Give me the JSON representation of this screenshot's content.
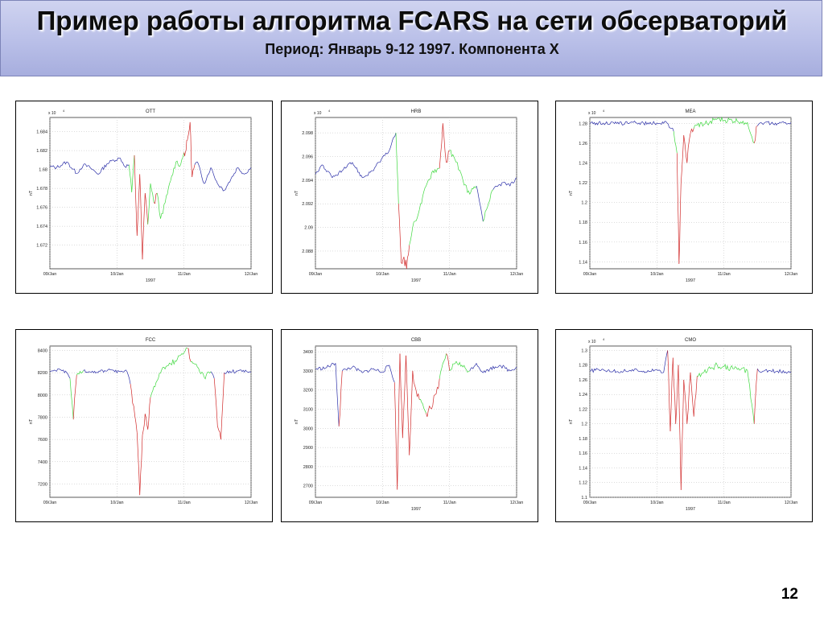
{
  "slide": {
    "title": "Пример работы алгоритма FCARS на сети обсерваторий",
    "subtitle": "Период: Январь 9-12 1997. Компонента X",
    "page_number": "12"
  },
  "colors": {
    "quiet": "#2b2fa8",
    "disturbed": "#d12a2a",
    "recovery": "#3fd93f"
  },
  "chart_data": [
    {
      "type": "line",
      "title": "OTT",
      "ylabel": "nT",
      "xlabel": "1997",
      "exponent_label": "x 10",
      "exponent_power": "4",
      "x_ticks": [
        "09/Jan",
        "10/Jan",
        "11/Jan",
        "12/Jan"
      ],
      "ylim": [
        1.6695,
        1.6855
      ],
      "y_ticks": [
        "1.672",
        "1.674",
        "1.676",
        "1.678",
        "1.68",
        "1.682",
        "1.684"
      ],
      "y_tick_values": [
        1.672,
        1.674,
        1.676,
        1.678,
        1.68,
        1.682,
        1.684
      ],
      "x": [
        0,
        0.1,
        0.25,
        0.4,
        0.5,
        0.6,
        0.72,
        0.85,
        0.95,
        1.05,
        1.12,
        1.18,
        1.22,
        1.26,
        1.3,
        1.34,
        1.38,
        1.42,
        1.46,
        1.5,
        1.55,
        1.6,
        1.65,
        1.72,
        1.8,
        1.88,
        1.95,
        2.0,
        2.03,
        2.06,
        2.09,
        2.12,
        2.16,
        2.2,
        2.3,
        2.4,
        2.5,
        2.6,
        2.7,
        2.8,
        2.9,
        3.0
      ],
      "y": [
        1.6803,
        1.6802,
        1.6808,
        1.6796,
        1.6805,
        1.6802,
        1.6795,
        1.6806,
        1.681,
        1.6812,
        1.6803,
        1.6805,
        1.6776,
        1.6815,
        1.673,
        1.6795,
        1.6705,
        1.6775,
        1.6742,
        1.6785,
        1.6765,
        1.6775,
        1.6748,
        1.6765,
        1.6788,
        1.6808,
        1.6805,
        1.6818,
        1.682,
        1.6835,
        1.685,
        1.6792,
        1.6805,
        1.6808,
        1.6785,
        1.6802,
        1.6785,
        1.6778,
        1.679,
        1.6802,
        1.6795,
        1.6802
      ],
      "phase": [
        "quiet",
        "quiet",
        "quiet",
        "quiet",
        "quiet",
        "quiet",
        "quiet",
        "quiet",
        "quiet",
        "quiet",
        "quiet",
        "recovery",
        "recovery",
        "disturbed",
        "disturbed",
        "disturbed",
        "disturbed",
        "disturbed",
        "recovery",
        "recovery",
        "disturbed",
        "recovery",
        "recovery",
        "recovery",
        "recovery",
        "recovery",
        "recovery",
        "disturbed",
        "disturbed",
        "disturbed",
        "disturbed",
        "disturbed",
        "quiet",
        "quiet",
        "quiet",
        "quiet",
        "quiet",
        "quiet",
        "quiet",
        "quiet",
        "quiet",
        "quiet"
      ]
    },
    {
      "type": "line",
      "title": "HRB",
      "ylabel": "nT",
      "xlabel": "1997",
      "exponent_label": "x 10",
      "exponent_power": "4",
      "x_ticks": [
        "09/Jan",
        "10/Jan",
        "11/Jan",
        "12/Jan"
      ],
      "ylim": [
        2.0865,
        2.0993
      ],
      "y_ticks": [
        "2.088",
        "2.09",
        "2.092",
        "2.094",
        "2.096",
        "2.098"
      ],
      "y_tick_values": [
        2.088,
        2.09,
        2.092,
        2.094,
        2.096,
        2.098
      ],
      "x": [
        0,
        0.1,
        0.25,
        0.4,
        0.55,
        0.7,
        0.85,
        0.95,
        1.1,
        1.2,
        1.24,
        1.28,
        1.32,
        1.36,
        1.4,
        1.45,
        1.55,
        1.65,
        1.75,
        1.85,
        1.9,
        1.95,
        2.0,
        2.1,
        2.2,
        2.3,
        2.4,
        2.5,
        2.55,
        2.65,
        2.8,
        2.9,
        3.0
      ],
      "y": [
        2.0945,
        2.0953,
        2.0942,
        2.0948,
        2.0955,
        2.0942,
        2.0948,
        2.0955,
        2.0965,
        2.098,
        2.092,
        2.087,
        2.0875,
        2.0865,
        2.0885,
        2.09,
        2.0915,
        2.0935,
        2.0948,
        2.095,
        2.0988,
        2.0955,
        2.0965,
        2.0955,
        2.094,
        2.0928,
        2.0935,
        2.0905,
        2.0915,
        2.0932,
        2.0938,
        2.0935,
        2.0942
      ],
      "phase": [
        "quiet",
        "quiet",
        "quiet",
        "quiet",
        "quiet",
        "quiet",
        "quiet",
        "quiet",
        "quiet",
        "recovery",
        "disturbed",
        "disturbed",
        "disturbed",
        "disturbed",
        "recovery",
        "recovery",
        "recovery",
        "recovery",
        "recovery",
        "disturbed",
        "disturbed",
        "disturbed",
        "recovery",
        "recovery",
        "recovery",
        "recovery",
        "quiet",
        "recovery",
        "recovery",
        "quiet",
        "quiet",
        "quiet",
        "quiet"
      ]
    },
    {
      "type": "line",
      "title": "MEA",
      "ylabel": "nT",
      "xlabel": "1997",
      "exponent_label": "x 10",
      "exponent_power": "4",
      "x_ticks": [
        "09/Jan",
        "10/Jan",
        "11/Jan",
        "12/Jan"
      ],
      "ylim": [
        1.133,
        1.286
      ],
      "y_ticks": [
        "1.14",
        "1.16",
        "1.18",
        "1.2",
        "1.22",
        "1.24",
        "1.26",
        "1.28"
      ],
      "y_tick_values": [
        1.14,
        1.16,
        1.18,
        1.2,
        1.22,
        1.24,
        1.26,
        1.28
      ],
      "x": [
        0,
        0.2,
        0.4,
        0.6,
        0.8,
        1.0,
        1.15,
        1.25,
        1.3,
        1.33,
        1.36,
        1.4,
        1.45,
        1.5,
        1.55,
        1.6,
        1.7,
        1.8,
        1.9,
        2.0,
        2.2,
        2.35,
        2.45,
        2.5,
        2.55,
        2.6,
        2.8,
        3.0
      ],
      "y": [
        1.28,
        1.2805,
        1.2798,
        1.2808,
        1.2802,
        1.2805,
        1.2805,
        1.272,
        1.25,
        1.138,
        1.22,
        1.268,
        1.24,
        1.27,
        1.275,
        1.278,
        1.279,
        1.2825,
        1.2845,
        1.283,
        1.2822,
        1.281,
        1.26,
        1.2775,
        1.281,
        1.2805,
        1.28,
        1.2808
      ],
      "phase": [
        "quiet",
        "quiet",
        "quiet",
        "quiet",
        "quiet",
        "quiet",
        "quiet",
        "recovery",
        "disturbed",
        "disturbed",
        "disturbed",
        "disturbed",
        "disturbed",
        "disturbed",
        "recovery",
        "recovery",
        "recovery",
        "recovery",
        "recovery",
        "recovery",
        "recovery",
        "recovery",
        "disturbed",
        "quiet",
        "quiet",
        "quiet",
        "quiet",
        "quiet"
      ]
    },
    {
      "type": "line",
      "title": "FCC",
      "ylabel": "nT",
      "xlabel": "",
      "x_ticks": [
        "09/Jan",
        "10/Jan",
        "11/Jan",
        "12/Jan"
      ],
      "ylim": [
        7080,
        8440
      ],
      "y_ticks": [
        "7200",
        "7400",
        "7600",
        "7800",
        "8000",
        "8200",
        "8400"
      ],
      "y_tick_values": [
        7200,
        7400,
        7600,
        7800,
        8000,
        8200,
        8400
      ],
      "x": [
        0,
        0.2,
        0.3,
        0.35,
        0.4,
        0.5,
        0.7,
        0.9,
        1.05,
        1.15,
        1.2,
        1.25,
        1.3,
        1.34,
        1.38,
        1.42,
        1.46,
        1.5,
        1.6,
        1.7,
        1.8,
        1.9,
        2.0,
        2.05,
        2.1,
        2.2,
        2.3,
        2.4,
        2.45,
        2.5,
        2.55,
        2.6,
        2.8,
        3.0
      ],
      "y": [
        8210,
        8225,
        8150,
        7780,
        8180,
        8220,
        8205,
        8225,
        8210,
        8210,
        8100,
        7900,
        7660,
        7100,
        7640,
        7830,
        7690,
        7980,
        8130,
        8250,
        8280,
        8320,
        8380,
        8420,
        8300,
        8250,
        8160,
        8210,
        8150,
        7720,
        7600,
        8200,
        8215,
        8205
      ],
      "phase": [
        "quiet",
        "quiet",
        "recovery",
        "disturbed",
        "recovery",
        "quiet",
        "quiet",
        "quiet",
        "quiet",
        "quiet",
        "disturbed",
        "disturbed",
        "disturbed",
        "disturbed",
        "disturbed",
        "disturbed",
        "disturbed",
        "recovery",
        "recovery",
        "recovery",
        "recovery",
        "recovery",
        "recovery",
        "disturbed",
        "recovery",
        "recovery",
        "recovery",
        "quiet",
        "disturbed",
        "disturbed",
        "disturbed",
        "quiet",
        "quiet",
        "quiet"
      ]
    },
    {
      "type": "line",
      "title": "CBB",
      "ylabel": "nT",
      "xlabel": "1997",
      "x_ticks": [
        "09/Jan",
        "10/Jan",
        "11/Jan",
        "12/Jan"
      ],
      "ylim": [
        2640,
        3430
      ],
      "y_ticks": [
        "2700",
        "2800",
        "2900",
        "3000",
        "3100",
        "3200",
        "3300",
        "3400"
      ],
      "y_tick_values": [
        2700,
        2800,
        2900,
        3000,
        3100,
        3200,
        3300,
        3400
      ],
      "x": [
        0,
        0.15,
        0.3,
        0.35,
        0.4,
        0.55,
        0.7,
        0.85,
        1.0,
        1.1,
        1.18,
        1.22,
        1.26,
        1.3,
        1.35,
        1.4,
        1.45,
        1.5,
        1.55,
        1.65,
        1.75,
        1.85,
        1.95,
        2.0,
        2.1,
        2.2,
        2.3,
        2.4,
        2.5,
        2.6,
        2.75,
        2.9,
        3.0
      ],
      "y": [
        3310,
        3315,
        3340,
        3010,
        3300,
        3320,
        3290,
        3310,
        3295,
        3330,
        3240,
        2680,
        3390,
        2950,
        3380,
        2860,
        3300,
        3200,
        3150,
        3080,
        3120,
        3260,
        3390,
        3300,
        3350,
        3320,
        3300,
        3340,
        3290,
        3310,
        3330,
        3300,
        3320
      ],
      "phase": [
        "quiet",
        "quiet",
        "quiet",
        "disturbed",
        "quiet",
        "quiet",
        "quiet",
        "quiet",
        "quiet",
        "quiet",
        "disturbed",
        "disturbed",
        "disturbed",
        "disturbed",
        "disturbed",
        "disturbed",
        "disturbed",
        "disturbed",
        "recovery",
        "disturbed",
        "disturbed",
        "recovery",
        "disturbed",
        "recovery",
        "recovery",
        "recovery",
        "quiet",
        "quiet",
        "quiet",
        "quiet",
        "quiet",
        "quiet",
        "quiet"
      ]
    },
    {
      "type": "line",
      "title": "CMO",
      "ylabel": "nT",
      "xlabel": "1997",
      "exponent_label": "x 10",
      "exponent_power": "4",
      "x_ticks": [
        "09/Jan",
        "10/Jan",
        "11/Jan",
        "12/Jan"
      ],
      "ylim": [
        1.1,
        1.306
      ],
      "y_ticks": [
        "1.1",
        "1.12",
        "1.14",
        "1.16",
        "1.18",
        "1.2",
        "1.22",
        "1.24",
        "1.26",
        "1.28",
        "1.3"
      ],
      "y_tick_values": [
        1.1,
        1.12,
        1.14,
        1.16,
        1.18,
        1.2,
        1.22,
        1.24,
        1.26,
        1.28,
        1.3
      ],
      "x": [
        0,
        0.2,
        0.4,
        0.6,
        0.8,
        1.0,
        1.1,
        1.16,
        1.2,
        1.24,
        1.28,
        1.32,
        1.36,
        1.4,
        1.45,
        1.5,
        1.55,
        1.6,
        1.7,
        1.8,
        1.9,
        2.0,
        2.2,
        2.35,
        2.45,
        2.5,
        2.55,
        2.6,
        2.8,
        3.0
      ],
      "y": [
        1.272,
        1.274,
        1.271,
        1.273,
        1.272,
        1.274,
        1.27,
        1.3,
        1.19,
        1.29,
        1.2,
        1.28,
        1.11,
        1.26,
        1.2,
        1.27,
        1.21,
        1.265,
        1.27,
        1.275,
        1.28,
        1.278,
        1.274,
        1.273,
        1.2,
        1.275,
        1.27,
        1.272,
        1.272,
        1.271
      ],
      "phase": [
        "quiet",
        "quiet",
        "quiet",
        "quiet",
        "quiet",
        "quiet",
        "quiet",
        "disturbed",
        "disturbed",
        "disturbed",
        "disturbed",
        "disturbed",
        "disturbed",
        "disturbed",
        "disturbed",
        "disturbed",
        "disturbed",
        "recovery",
        "recovery",
        "recovery",
        "recovery",
        "recovery",
        "recovery",
        "recovery",
        "disturbed",
        "quiet",
        "quiet",
        "quiet",
        "quiet",
        "quiet"
      ]
    }
  ]
}
